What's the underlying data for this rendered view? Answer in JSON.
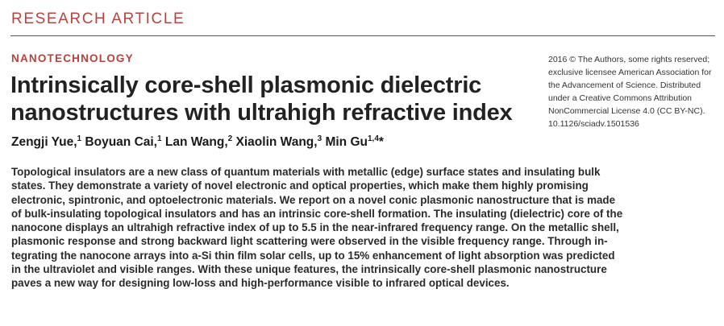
{
  "header": {
    "label": "RESEARCH ARTICLE"
  },
  "section": {
    "label": "NANOTECHNOLOGY"
  },
  "title_lines": [
    "Intrinsically core-shell plasmonic dielectric",
    "nanostructures with ultrahigh refractive index"
  ],
  "authors": [
    {
      "name": "Zengji Yue,",
      "aff": "1"
    },
    {
      "name": "Boyuan Cai,",
      "aff": "1"
    },
    {
      "name": "Lan Wang,",
      "aff": "2"
    },
    {
      "name": "Xiaolin Wang,",
      "aff": "3"
    },
    {
      "name": "Min Gu",
      "aff": "1,4",
      "suffix": "*"
    }
  ],
  "rights_lines": [
    "2016 © The Authors, some rights reserved;",
    "exclusive licensee American Association for",
    "the Advancement of Science. Distributed",
    "under a Creative Commons Attribution",
    "NonCommercial License 4.0 (CC BY-NC).",
    "10.1126/sciadv.1501536"
  ],
  "abstract_lines": [
    "Topological insulators are a new class of quantum materials with metallic (edge) surface states and insulating bulk",
    "states. They demonstrate a variety of novel electronic and optical properties, which make them highly promising",
    "electronic, spintronic, and optoelectronic materials. We report on a novel conic plasmonic nanostructure that is made",
    "of bulk-insulating topological insulators and has an intrinsic core-shell formation. The insulating (dielectric) core of the",
    "nanocone displays an ultrahigh refractive index of up to 5.5 in the near-infrared frequency range. On the metallic shell,",
    "plasmonic response and strong backward light scattering were observed in the visible frequency range. Through in-",
    "tegrating the nanocone arrays into a-Si thin film solar cells, up to 15% enhancement of light absorption was predicted",
    "in the ultraviolet and visible ranges. With these unique features, the intrinsically core-shell plasmonic nanostructure",
    "paves a new way for designing low-loss and high-performance visible to infrared optical devices."
  ]
}
